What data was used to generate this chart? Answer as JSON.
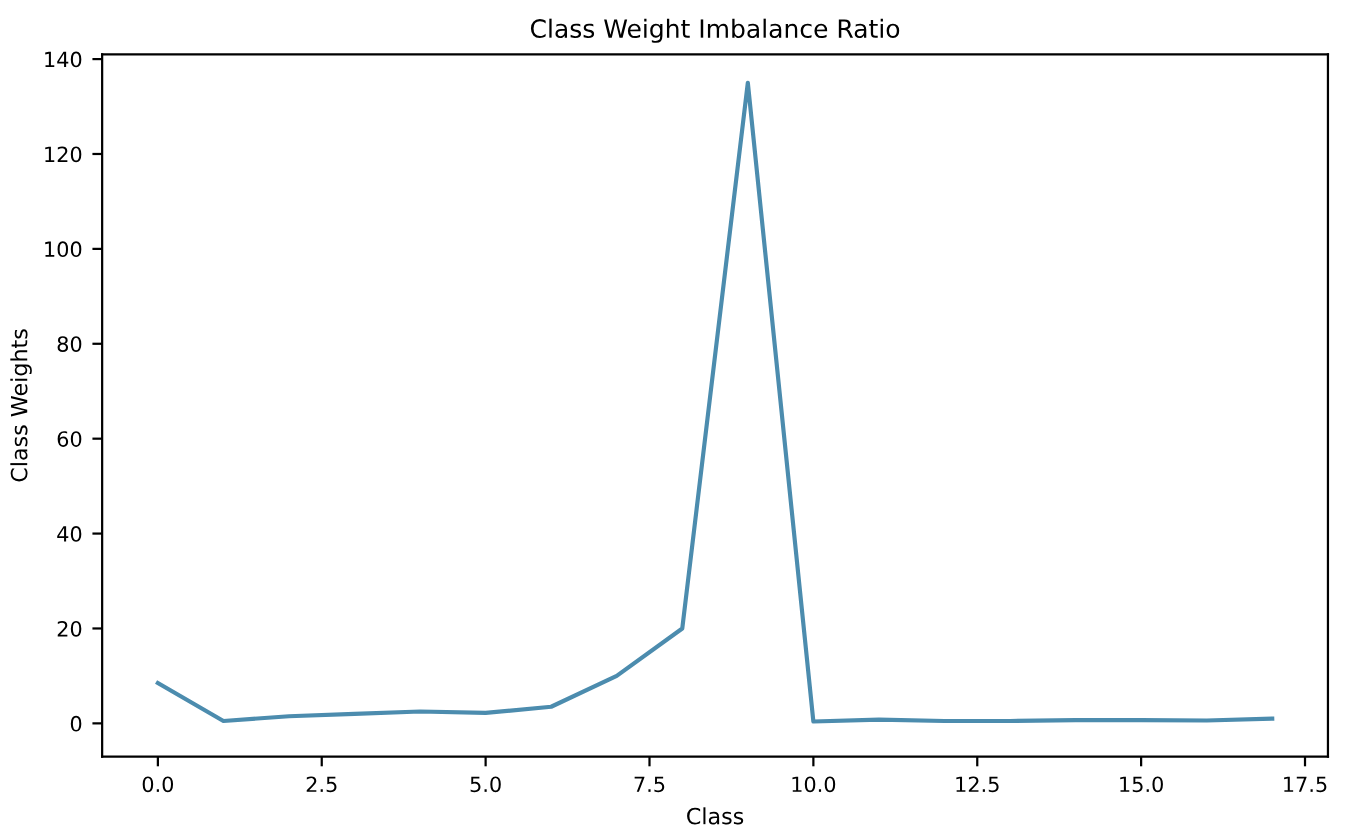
{
  "chart_data": {
    "type": "line",
    "title": "Class Weight Imbalance Ratio",
    "xlabel": "Class",
    "ylabel": "Class Weights",
    "x": [
      0,
      1,
      2,
      3,
      4,
      5,
      6,
      7,
      8,
      9,
      10,
      11,
      12,
      13,
      14,
      15,
      16,
      17
    ],
    "series": [
      {
        "color": "#4c8cae",
        "values": [
          8.5,
          0.5,
          1.5,
          2,
          2.5,
          2.2,
          3.5,
          10,
          20,
          135,
          0.4,
          0.8,
          0.5,
          0.5,
          0.7,
          0.7,
          0.6,
          1
        ]
      }
    ],
    "xlim": [
      -0.85,
      17.85
    ],
    "ylim": [
      -7,
      141
    ],
    "xticks": [
      {
        "value": 0,
        "label": "0.0"
      },
      {
        "value": 2.5,
        "label": "2.5"
      },
      {
        "value": 5,
        "label": "5.0"
      },
      {
        "value": 7.5,
        "label": "7.5"
      },
      {
        "value": 10,
        "label": "10.0"
      },
      {
        "value": 12.5,
        "label": "12.5"
      },
      {
        "value": 15,
        "label": "15.0"
      },
      {
        "value": 17.5,
        "label": "17.5"
      }
    ],
    "yticks": [
      0,
      20,
      40,
      60,
      80,
      100,
      120,
      140
    ],
    "grid": false,
    "marker": "none",
    "line_style": "solid"
  }
}
